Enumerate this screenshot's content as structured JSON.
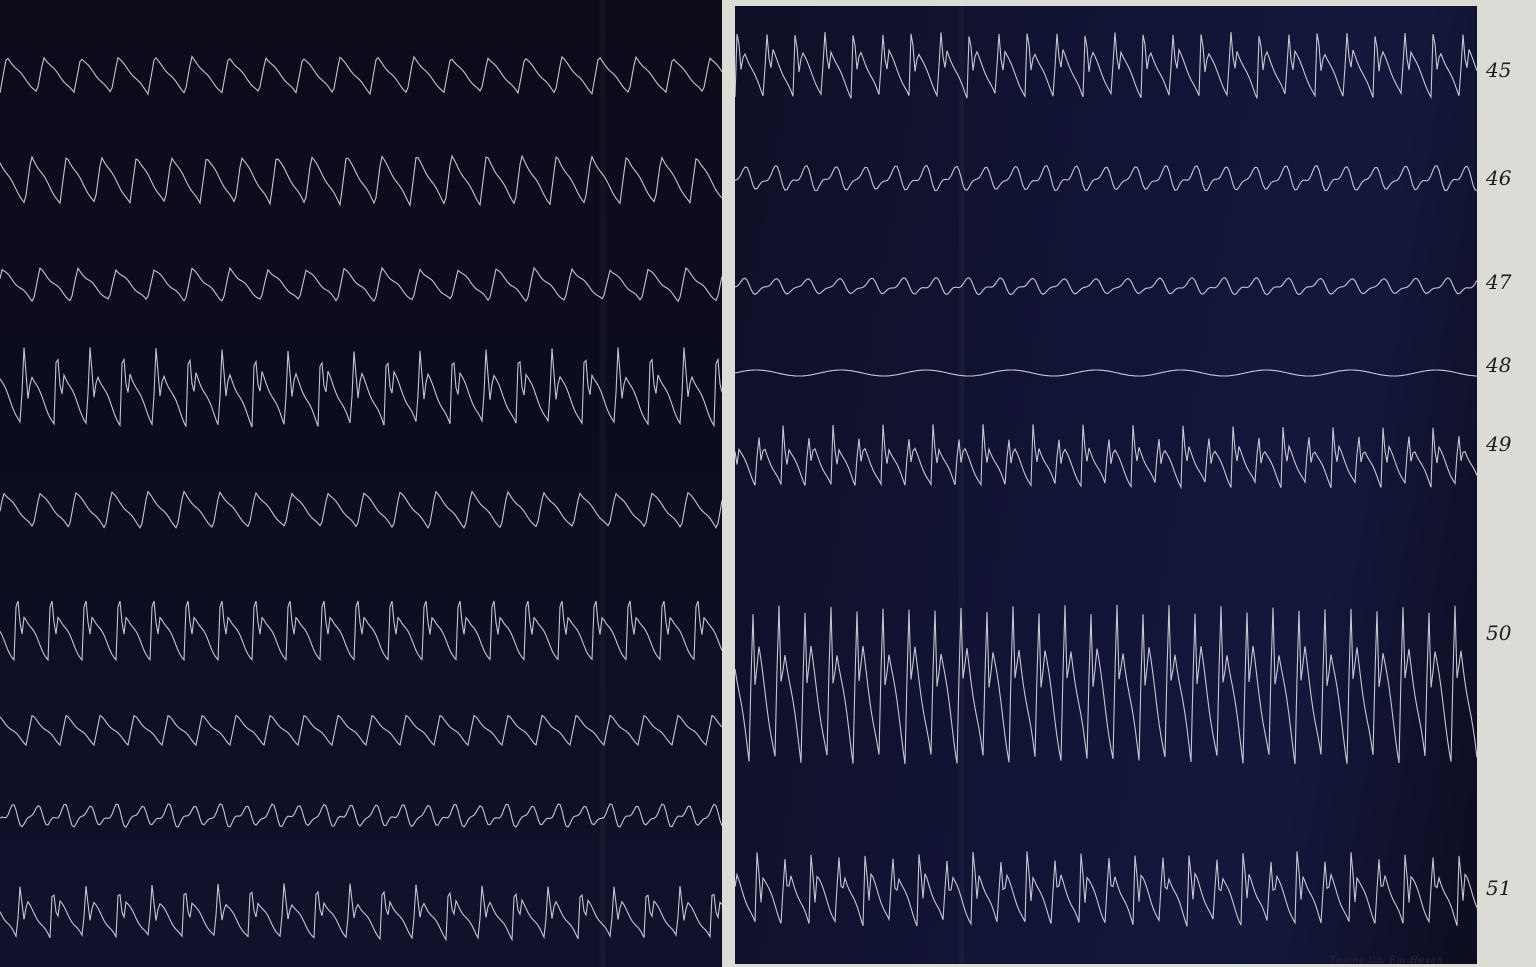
{
  "plate": {
    "trace_color": "#e6e6ee",
    "background_color": "#0d0d22"
  },
  "rows": [
    {
      "id": "45",
      "label": "45"
    },
    {
      "id": "46",
      "label": "46"
    },
    {
      "id": "47",
      "label": "47"
    },
    {
      "id": "48",
      "label": "48"
    },
    {
      "id": "49",
      "label": "49"
    },
    {
      "id": "50",
      "label": "50"
    },
    {
      "id": "51",
      "label": "51"
    }
  ],
  "credit": "Tesine lit. Fm Hesen"
}
